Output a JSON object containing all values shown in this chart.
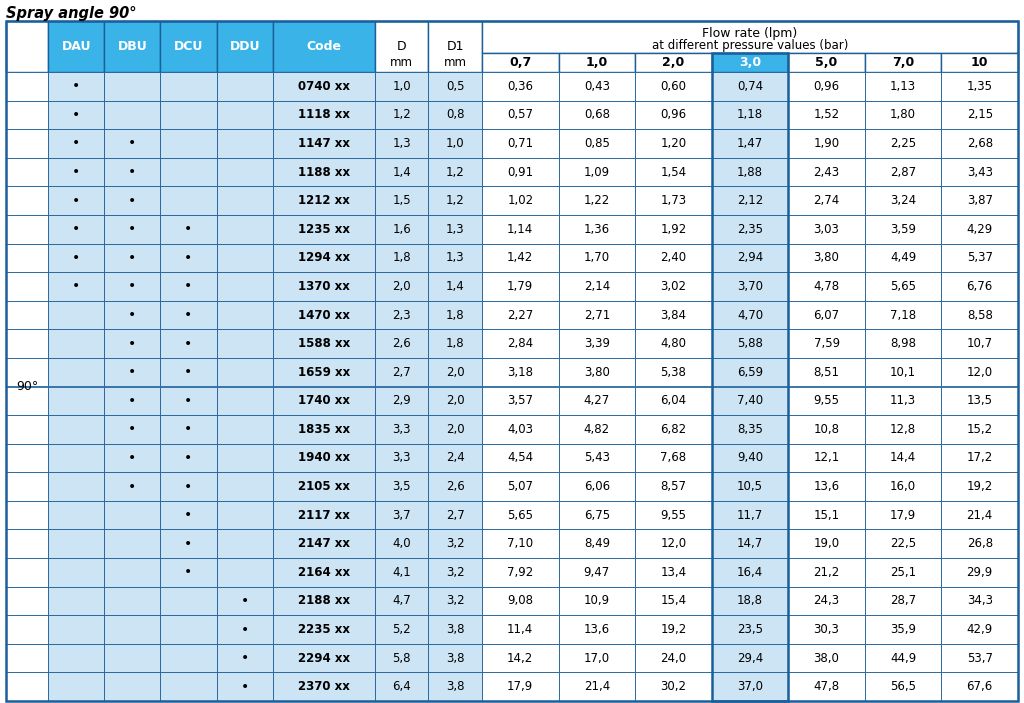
{
  "title": "Spray angle 90°",
  "blue": "#3ab4e8",
  "light_blue": "#cce4f4",
  "white": "#ffffff",
  "border_dark": "#1a5f9a",
  "border_light": "#5599cc",
  "rows": [
    [
      "•",
      "",
      "",
      "",
      "0740 xx",
      "1,0",
      "0,5",
      "0,36",
      "0,43",
      "0,60",
      "0,74",
      "0,96",
      "1,13",
      "1,35"
    ],
    [
      "•",
      "",
      "",
      "",
      "1118 xx",
      "1,2",
      "0,8",
      "0,57",
      "0,68",
      "0,96",
      "1,18",
      "1,52",
      "1,80",
      "2,15"
    ],
    [
      "•",
      "•",
      "",
      "",
      "1147 xx",
      "1,3",
      "1,0",
      "0,71",
      "0,85",
      "1,20",
      "1,47",
      "1,90",
      "2,25",
      "2,68"
    ],
    [
      "•",
      "•",
      "",
      "",
      "1188 xx",
      "1,4",
      "1,2",
      "0,91",
      "1,09",
      "1,54",
      "1,88",
      "2,43",
      "2,87",
      "3,43"
    ],
    [
      "•",
      "•",
      "",
      "",
      "1212 xx",
      "1,5",
      "1,2",
      "1,02",
      "1,22",
      "1,73",
      "2,12",
      "2,74",
      "3,24",
      "3,87"
    ],
    [
      "•",
      "•",
      "•",
      "",
      "1235 xx",
      "1,6",
      "1,3",
      "1,14",
      "1,36",
      "1,92",
      "2,35",
      "3,03",
      "3,59",
      "4,29"
    ],
    [
      "•",
      "•",
      "•",
      "",
      "1294 xx",
      "1,8",
      "1,3",
      "1,42",
      "1,70",
      "2,40",
      "2,94",
      "3,80",
      "4,49",
      "5,37"
    ],
    [
      "•",
      "•",
      "•",
      "",
      "1370 xx",
      "2,0",
      "1,4",
      "1,79",
      "2,14",
      "3,02",
      "3,70",
      "4,78",
      "5,65",
      "6,76"
    ],
    [
      "",
      "•",
      "•",
      "",
      "1470 xx",
      "2,3",
      "1,8",
      "2,27",
      "2,71",
      "3,84",
      "4,70",
      "6,07",
      "7,18",
      "8,58"
    ],
    [
      "",
      "•",
      "•",
      "",
      "1588 xx",
      "2,6",
      "1,8",
      "2,84",
      "3,39",
      "4,80",
      "5,88",
      "7,59",
      "8,98",
      "10,7"
    ],
    [
      "",
      "•",
      "•",
      "",
      "1659 xx",
      "2,7",
      "2,0",
      "3,18",
      "3,80",
      "5,38",
      "6,59",
      "8,51",
      "10,1",
      "12,0"
    ],
    [
      "",
      "•",
      "•",
      "",
      "1740 xx",
      "2,9",
      "2,0",
      "3,57",
      "4,27",
      "6,04",
      "7,40",
      "9,55",
      "11,3",
      "13,5"
    ],
    [
      "",
      "•",
      "•",
      "",
      "1835 xx",
      "3,3",
      "2,0",
      "4,03",
      "4,82",
      "6,82",
      "8,35",
      "10,8",
      "12,8",
      "15,2"
    ],
    [
      "",
      "•",
      "•",
      "",
      "1940 xx",
      "3,3",
      "2,4",
      "4,54",
      "5,43",
      "7,68",
      "9,40",
      "12,1",
      "14,4",
      "17,2"
    ],
    [
      "",
      "•",
      "•",
      "",
      "2105 xx",
      "3,5",
      "2,6",
      "5,07",
      "6,06",
      "8,57",
      "10,5",
      "13,6",
      "16,0",
      "19,2"
    ],
    [
      "",
      "",
      "•",
      "",
      "2117 xx",
      "3,7",
      "2,7",
      "5,65",
      "6,75",
      "9,55",
      "11,7",
      "15,1",
      "17,9",
      "21,4"
    ],
    [
      "",
      "",
      "•",
      "",
      "2147 xx",
      "4,0",
      "3,2",
      "7,10",
      "8,49",
      "12,0",
      "14,7",
      "19,0",
      "22,5",
      "26,8"
    ],
    [
      "",
      "",
      "•",
      "",
      "2164 xx",
      "4,1",
      "3,2",
      "7,92",
      "9,47",
      "13,4",
      "16,4",
      "21,2",
      "25,1",
      "29,9"
    ],
    [
      "",
      "",
      "",
      "•",
      "2188 xx",
      "4,7",
      "3,2",
      "9,08",
      "10,9",
      "15,4",
      "18,8",
      "24,3",
      "28,7",
      "34,3"
    ],
    [
      "",
      "",
      "",
      "•",
      "2235 xx",
      "5,2",
      "3,8",
      "11,4",
      "13,6",
      "19,2",
      "23,5",
      "30,3",
      "35,9",
      "42,9"
    ],
    [
      "",
      "",
      "",
      "•",
      "2294 xx",
      "5,8",
      "3,8",
      "14,2",
      "17,0",
      "24,0",
      "29,4",
      "38,0",
      "44,9",
      "53,7"
    ],
    [
      "",
      "",
      "",
      "•",
      "2370 xx",
      "6,4",
      "3,8",
      "17,9",
      "21,4",
      "30,2",
      "37,0",
      "47,8",
      "56,5",
      "67,6"
    ]
  ],
  "pressure_labels": [
    "0,7",
    "1,0",
    "2,0",
    "3,0",
    "5,0",
    "7,0",
    "10"
  ],
  "highlight_pressure_idx": 3
}
